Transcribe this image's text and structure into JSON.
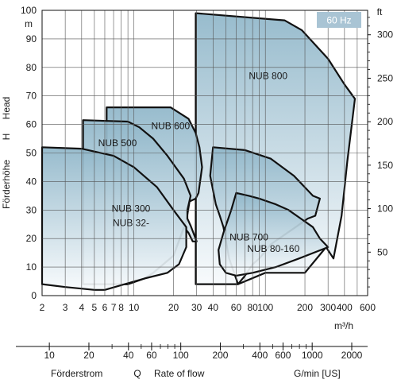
{
  "chart_data": {
    "type": "area",
    "title": "",
    "badge": "60 Hz",
    "x_scale": "log",
    "xlim": [
      2,
      600
    ],
    "ylim": [
      0,
      100
    ],
    "y_ticks": [
      0,
      10,
      20,
      30,
      40,
      50,
      60,
      70,
      80,
      90,
      100
    ],
    "x_ticks": [
      2,
      3,
      4,
      5,
      6,
      7,
      8,
      10,
      20,
      30,
      40,
      60,
      80,
      100,
      200,
      300,
      400,
      600
    ],
    "x_tick_labels": [
      "2",
      "3",
      "4",
      "5",
      "6",
      "7",
      "8",
      "10",
      "20",
      "30",
      "40",
      "60",
      "80",
      "100",
      "200",
      "300",
      "400",
      "600"
    ],
    "x_minor_gridlines": [
      9,
      50,
      70,
      90,
      500
    ],
    "y_unit_left": "m",
    "y_unit_right": "ft",
    "y_ticks_right": [
      50,
      100,
      150,
      200,
      250,
      300
    ],
    "x_unit": "m³/h",
    "y_label_de": "Förderhöhe",
    "y_label_symbol": "H",
    "y_label_en": "Head",
    "us_axis": {
      "unit": "G/min [US]",
      "ticks": [
        10,
        20,
        40,
        60,
        100,
        200,
        400,
        600,
        1000,
        2000
      ],
      "minor_ticks": [
        30,
        50,
        70,
        80,
        90,
        300,
        500,
        700,
        800,
        900,
        3000
      ],
      "m3h_per_unit": 0.227125
    },
    "x_label_de": "Förderstrom",
    "x_label_symbol": "Q",
    "x_label_en": "Rate of flow",
    "grid": true,
    "colors": {
      "fill_top": "#8fb6c9",
      "fill_bottom": "#f7fafc",
      "outline": "#111111",
      "badge": "#a9c4d4"
    },
    "series": [
      {
        "name": "NUB 800",
        "label_at": [
          105,
          77
        ],
        "outline": [
          [
            29.5,
            99
          ],
          [
            140,
            96.5
          ],
          [
            190,
            93
          ],
          [
            300,
            83
          ],
          [
            400,
            74
          ],
          [
            480,
            69
          ],
          [
            420,
            47
          ],
          [
            380,
            28
          ],
          [
            330,
            13
          ],
          [
            290,
            17
          ],
          [
            200,
            8
          ],
          [
            100,
            8
          ],
          [
            62,
            4
          ],
          [
            30,
            4
          ],
          [
            29.5,
            4
          ]
        ]
      },
      {
        "name": "NUB 600",
        "label_at": [
          19,
          59.5
        ],
        "outline": [
          [
            6.2,
            66
          ],
          [
            19,
            66
          ],
          [
            26,
            62
          ],
          [
            29.5,
            57
          ],
          [
            31.5,
            52
          ],
          [
            33,
            45
          ],
          [
            31,
            36
          ],
          [
            29.5,
            34
          ],
          [
            26.5,
            33
          ],
          [
            25,
            26
          ],
          [
            20,
            14
          ],
          [
            14,
            8
          ],
          [
            12,
            6
          ],
          [
            9,
            4
          ],
          [
            6.2,
            4
          ]
        ]
      },
      {
        "name": "NUB 500",
        "label_at": [
          7.5,
          53.5
        ],
        "outline": [
          [
            4.1,
            61.5
          ],
          [
            9,
            61
          ],
          [
            11,
            59
          ],
          [
            14,
            55
          ],
          [
            18,
            49
          ],
          [
            24,
            41
          ],
          [
            27,
            35
          ],
          [
            25.5,
            30
          ],
          [
            25.5,
            27
          ],
          [
            27,
            24.5
          ],
          [
            30,
            19
          ],
          [
            28,
            19
          ],
          [
            26,
            22
          ],
          [
            24,
            24
          ],
          [
            20,
            14
          ],
          [
            14,
            8
          ],
          [
            12,
            6
          ],
          [
            9,
            4
          ],
          [
            4.1,
            4
          ]
        ]
      },
      {
        "name": "NUB 300",
        "label_at": [
          9.5,
          30.5
        ],
        "outline": [
          [
            2,
            52
          ],
          [
            4,
            51.5
          ],
          [
            7,
            49
          ],
          [
            10,
            45
          ],
          [
            15,
            38
          ],
          [
            20,
            30
          ],
          [
            25,
            24
          ],
          [
            25,
            17
          ],
          [
            22,
            11
          ],
          [
            18,
            8
          ],
          [
            12,
            6
          ],
          [
            6,
            2
          ],
          [
            5,
            2
          ],
          [
            3,
            3
          ],
          [
            2,
            4
          ]
        ]
      },
      {
        "name": "NUB 32-",
        "label_at": [
          9.5,
          25.5
        ],
        "outline": []
      },
      {
        "name": "NUB 700",
        "label_at": [
          75,
          20.5
        ],
        "outline": [
          [
            40,
            52
          ],
          [
            70,
            51
          ],
          [
            110,
            48
          ],
          [
            165,
            42
          ],
          [
            230,
            35
          ],
          [
            260,
            34
          ],
          [
            240,
            28
          ],
          [
            210,
            27
          ],
          [
            170,
            24
          ],
          [
            110,
            18
          ],
          [
            90,
            13
          ],
          [
            80,
            11
          ],
          [
            70,
            7
          ],
          [
            62,
            4
          ],
          [
            53,
            13
          ],
          [
            48,
            24
          ],
          [
            45,
            28
          ],
          [
            42,
            32
          ],
          [
            38,
            42
          ],
          [
            40,
            52
          ]
        ]
      },
      {
        "name": "NUB 80-160",
        "label_at": [
          115,
          16.5
        ],
        "outline": [
          [
            60,
            36
          ],
          [
            75,
            35
          ],
          [
            90,
            34
          ],
          [
            120,
            32
          ],
          [
            150,
            30
          ],
          [
            200,
            26
          ],
          [
            230,
            24
          ],
          [
            260,
            20
          ],
          [
            300,
            17
          ],
          [
            180,
            13
          ],
          [
            120,
            10
          ],
          [
            80,
            8
          ],
          [
            60,
            7
          ],
          [
            50,
            8
          ],
          [
            45,
            11
          ],
          [
            44,
            16
          ],
          [
            48,
            22
          ],
          [
            55,
            30
          ]
        ]
      }
    ]
  }
}
